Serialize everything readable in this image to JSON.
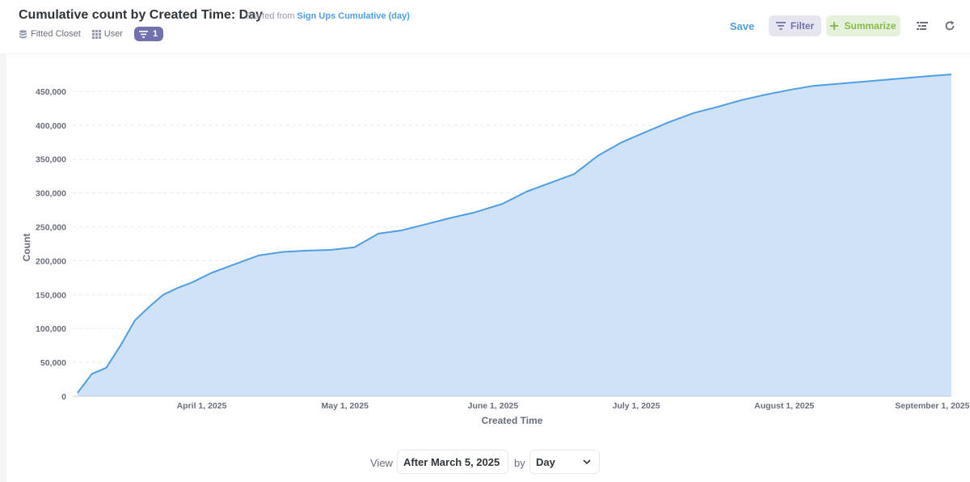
{
  "header": {
    "title": "Cumulative count by Created Time: Day",
    "started_from_prefix": "Started from",
    "started_from_link": "Sign Ups Cumulative (day)",
    "breadcrumbs": [
      {
        "label": "Fitted Closet",
        "icon": "database-icon"
      },
      {
        "label": "User",
        "icon": "table-grid-icon"
      }
    ],
    "filter_count": "1"
  },
  "toolbar": {
    "save_label": "Save",
    "filter_label": "Filter",
    "summarize_label": "Summarize",
    "colors": {
      "filter": "#7172ad",
      "summarize": "#84bb4c",
      "save": "#509ee3"
    }
  },
  "chart_data": {
    "type": "area",
    "xlabel": "Created Time",
    "ylabel": "Count",
    "ylim": [
      0,
      475000
    ],
    "xlim": [
      "2025-03-05",
      "2025-09-05"
    ],
    "y_ticks": [
      0,
      50000,
      100000,
      150000,
      200000,
      250000,
      300000,
      350000,
      400000,
      450000
    ],
    "x_ticks": [
      {
        "date": "2025-04-01",
        "label": "April 1, 2025"
      },
      {
        "date": "2025-05-01",
        "label": "May 1, 2025"
      },
      {
        "date": "2025-06-01",
        "label": "June 1, 2025"
      },
      {
        "date": "2025-07-01",
        "label": "July 1, 2025"
      },
      {
        "date": "2025-08-01",
        "label": "August 1, 2025"
      },
      {
        "date": "2025-09-01",
        "label": "September 1, 2025"
      }
    ],
    "grid": true,
    "color": "#509ee3",
    "series": [
      {
        "x": [
          "2025-03-06",
          "2025-03-09",
          "2025-03-12",
          "2025-03-15",
          "2025-03-18",
          "2025-03-21",
          "2025-03-24",
          "2025-03-27",
          "2025-03-30",
          "2025-04-03",
          "2025-04-08",
          "2025-04-13",
          "2025-04-18",
          "2025-04-23",
          "2025-04-28",
          "2025-05-03",
          "2025-05-08",
          "2025-05-13",
          "2025-05-18",
          "2025-05-23",
          "2025-05-28",
          "2025-06-03",
          "2025-06-08",
          "2025-06-13",
          "2025-06-18",
          "2025-06-23",
          "2025-06-28",
          "2025-07-03",
          "2025-07-08",
          "2025-07-13",
          "2025-07-18",
          "2025-07-23",
          "2025-07-28",
          "2025-08-02",
          "2025-08-07",
          "2025-08-12",
          "2025-08-17",
          "2025-08-22",
          "2025-08-27",
          "2025-09-01",
          "2025-09-05"
        ],
        "values": [
          5000,
          33000,
          42000,
          75000,
          112000,
          132000,
          150000,
          160000,
          168000,
          182000,
          195000,
          208000,
          213000,
          215000,
          216000,
          220000,
          240000,
          245000,
          254000,
          263000,
          271000,
          284000,
          302000,
          315000,
          328000,
          355000,
          375000,
          390000,
          405000,
          418000,
          427000,
          437000,
          445000,
          452000,
          458000,
          461000,
          464000,
          467000,
          470000,
          473000,
          475000
        ]
      }
    ]
  },
  "footer": {
    "view_label": "View",
    "date_filter": "After March 5, 2025",
    "by_label": "by",
    "granularity": "Day"
  }
}
